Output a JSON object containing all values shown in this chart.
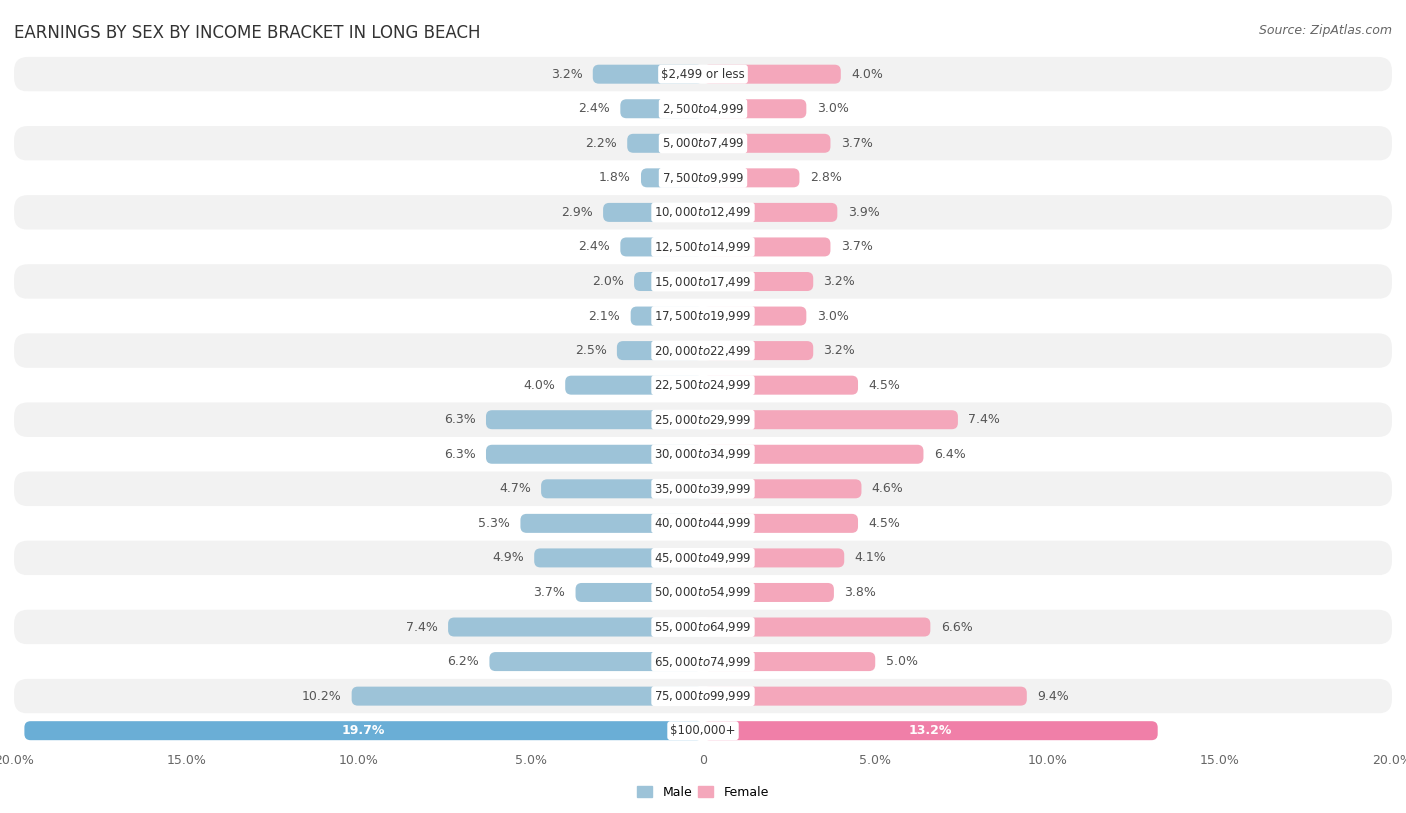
{
  "title": "EARNINGS BY SEX BY INCOME BRACKET IN LONG BEACH",
  "source": "Source: ZipAtlas.com",
  "categories": [
    "$2,499 or less",
    "$2,500 to $4,999",
    "$5,000 to $7,499",
    "$7,500 to $9,999",
    "$10,000 to $12,499",
    "$12,500 to $14,999",
    "$15,000 to $17,499",
    "$17,500 to $19,999",
    "$20,000 to $22,499",
    "$22,500 to $24,999",
    "$25,000 to $29,999",
    "$30,000 to $34,999",
    "$35,000 to $39,999",
    "$40,000 to $44,999",
    "$45,000 to $49,999",
    "$50,000 to $54,999",
    "$55,000 to $64,999",
    "$65,000 to $74,999",
    "$75,000 to $99,999",
    "$100,000+"
  ],
  "male_values": [
    3.2,
    2.4,
    2.2,
    1.8,
    2.9,
    2.4,
    2.0,
    2.1,
    2.5,
    4.0,
    6.3,
    6.3,
    4.7,
    5.3,
    4.9,
    3.7,
    7.4,
    6.2,
    10.2,
    19.7
  ],
  "female_values": [
    4.0,
    3.0,
    3.7,
    2.8,
    3.9,
    3.7,
    3.2,
    3.0,
    3.2,
    4.5,
    7.4,
    6.4,
    4.6,
    4.5,
    4.1,
    3.8,
    6.6,
    5.0,
    9.4,
    13.2
  ],
  "male_color": "#9dc3d8",
  "female_color": "#f4a7bb",
  "male_last_color": "#6aaed6",
  "female_last_color": "#f07fa8",
  "axis_max": 20.0,
  "bar_height": 0.55,
  "row_color_odd": "#f2f2f2",
  "row_color_even": "#ffffff",
  "title_fontsize": 12,
  "label_fontsize": 9,
  "category_fontsize": 8.5,
  "legend_fontsize": 9,
  "tick_fontsize": 9
}
